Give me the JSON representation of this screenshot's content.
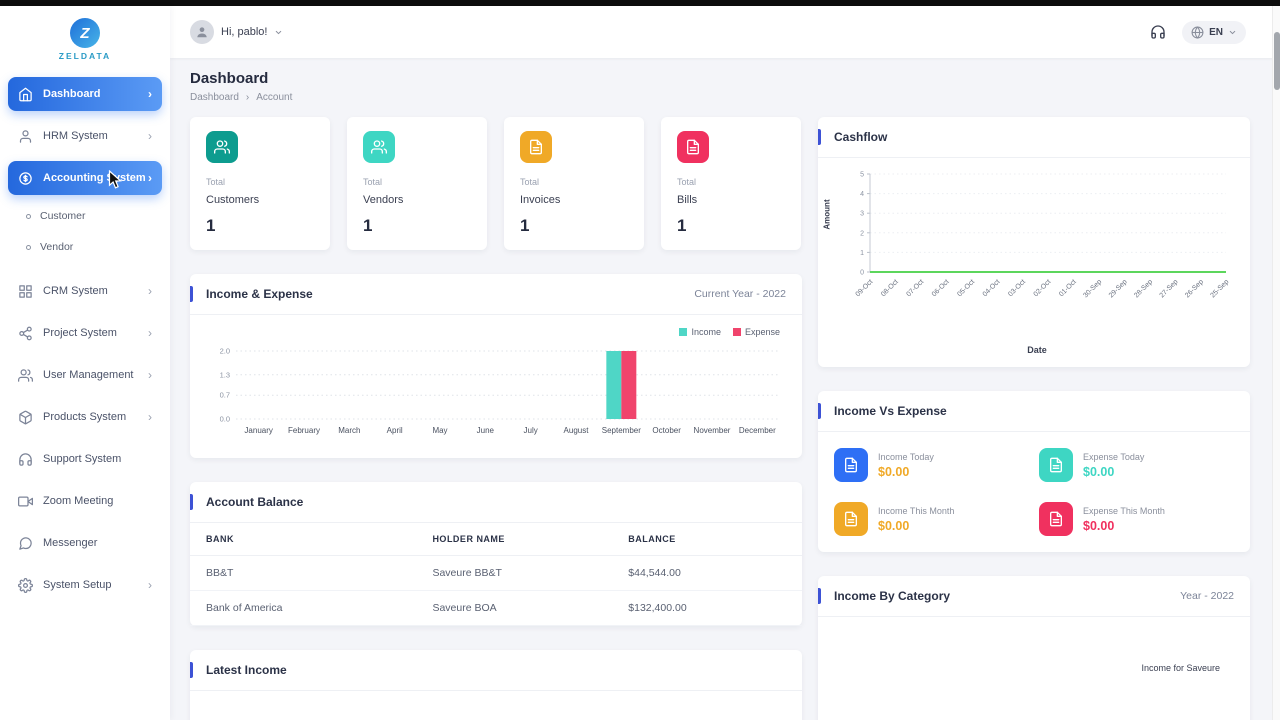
{
  "theme": {
    "primary_blue": "#2f6fe4",
    "active_gradient_start": "#2468dd",
    "active_gradient_end": "#5b9bf5",
    "accent_bar": "#3d52d5"
  },
  "sidebar": {
    "brand": "ZELDATA",
    "brand_initial": "Z",
    "items": [
      {
        "label": "Dashboard"
      },
      {
        "label": "HRM System"
      },
      {
        "label": "Accounting System"
      },
      {
        "label": "Customer"
      },
      {
        "label": "Vendor"
      },
      {
        "label": "CRM System"
      },
      {
        "label": "Project System"
      },
      {
        "label": "User Management"
      },
      {
        "label": "Products System"
      },
      {
        "label": "Support System"
      },
      {
        "label": "Zoom Meeting"
      },
      {
        "label": "Messenger"
      },
      {
        "label": "System Setup"
      }
    ]
  },
  "header": {
    "greeting": "Hi, pablo!",
    "language": "EN"
  },
  "page": {
    "title": "Dashboard",
    "breadcrumb_root": "Dashboard",
    "breadcrumb_separator": "›",
    "breadcrumb_current": "Account"
  },
  "stats": [
    {
      "prefix": "Total",
      "label": "Customers",
      "value": "1",
      "color": "#0d9c8f"
    },
    {
      "prefix": "Total",
      "label": "Vendors",
      "value": "1",
      "color": "#3ed6c3"
    },
    {
      "prefix": "Total",
      "label": "Invoices",
      "value": "1",
      "color": "#f0a927"
    },
    {
      "prefix": "Total",
      "label": "Bills",
      "value": "1",
      "color": "#f0315f"
    }
  ],
  "income_expense_card": {
    "period": "Current Year - 2022"
  },
  "income_vs_expense": {
    "title": "Income Vs Expense",
    "tiles": [
      {
        "label": "Income Today",
        "amount": "$0.00",
        "icon_color": "#2e6ff5",
        "amount_color": "#f0a927"
      },
      {
        "label": "Expense Today",
        "amount": "$0.00",
        "icon_color": "#3ed6c3",
        "amount_color": "#3ed6c3"
      },
      {
        "label": "Income This Month",
        "amount": "$0.00",
        "icon_color": "#f0a927",
        "amount_color": "#f0a927"
      },
      {
        "label": "Expense This Month",
        "amount": "$0.00",
        "icon_color": "#f0315f",
        "amount_color": "#f0315f"
      }
    ]
  },
  "account_balance": {
    "title": "Account Balance",
    "columns": [
      "BANK",
      "HOLDER NAME",
      "BALANCE"
    ],
    "rows": [
      [
        "BB&T",
        "Saveure BB&T",
        "$44,544.00"
      ],
      [
        "Bank of America",
        "Saveure BOA",
        "$132,400.00"
      ]
    ]
  },
  "latest_income": {
    "title": "Latest Income"
  },
  "income_by_category": {
    "title": "Income By Category",
    "period": "Year - 2022",
    "legend": "Income for Saveure"
  },
  "chart_data": [
    {
      "type": "bar",
      "title": "Income & Expense",
      "categories": [
        "January",
        "February",
        "March",
        "April",
        "May",
        "June",
        "July",
        "August",
        "September",
        "October",
        "November",
        "December"
      ],
      "series": [
        {
          "name": "Income",
          "color": "#4fd6c6",
          "values": [
            0,
            0,
            0,
            0,
            0,
            0,
            0,
            0,
            2.0,
            0,
            0,
            0
          ]
        },
        {
          "name": "Expense",
          "color": "#f0446c",
          "values": [
            0,
            0,
            0,
            0,
            0,
            0,
            0,
            0,
            2.0,
            0,
            0,
            0
          ]
        }
      ],
      "yticks": [
        2.0,
        1.3,
        0.7,
        0.0
      ],
      "ylim": [
        0,
        2.0
      ],
      "grid": true,
      "legend_position": "top-right"
    },
    {
      "type": "line",
      "title": "Cashflow",
      "x": [
        "09-Oct",
        "08-Oct",
        "07-Oct",
        "06-Oct",
        "05-Oct",
        "04-Oct",
        "03-Oct",
        "02-Oct",
        "01-Oct",
        "30-Sep",
        "29-Sep",
        "28-Sep",
        "27-Sep",
        "26-Sep",
        "25-Sep"
      ],
      "series": [
        {
          "name": "Cashflow",
          "color": "#5cd65c",
          "values": [
            0,
            0,
            0,
            0,
            0,
            0,
            0,
            0,
            0,
            0,
            0,
            0,
            0,
            0,
            0
          ]
        }
      ],
      "yticks": [
        5,
        4,
        3,
        2,
        1,
        0
      ],
      "ylim": [
        0,
        5
      ],
      "xlabel": "Date",
      "ylabel": "Amount",
      "grid": true
    }
  ]
}
